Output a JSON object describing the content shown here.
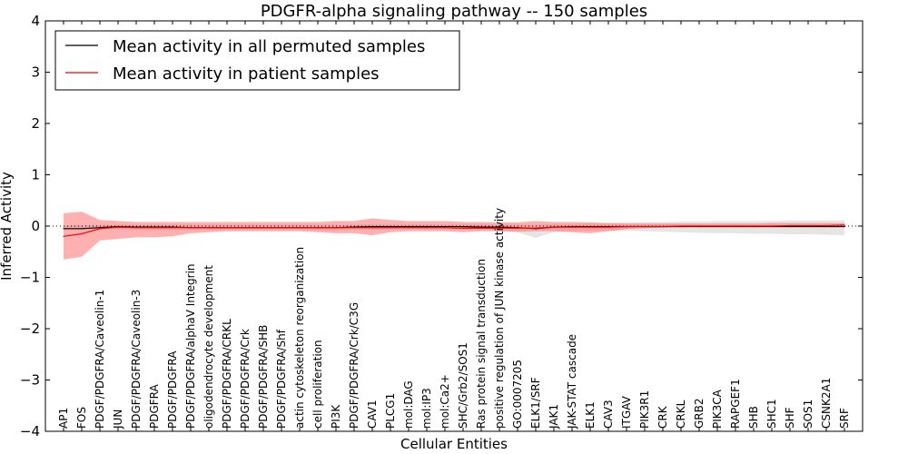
{
  "chart_data": {
    "type": "line",
    "title": "PDGFR-alpha signaling pathway -- 150 samples",
    "xlabel": "Cellular Entities",
    "ylabel": "Inferred Activity",
    "ylim": [
      -4,
      4
    ],
    "yticks": [
      -4,
      -3,
      -2,
      -1,
      0,
      1,
      2,
      3,
      4
    ],
    "grid": false,
    "legend_placement": "top-left",
    "reference_line": {
      "y": 0,
      "style": "dotted"
    },
    "categories": [
      "AP1",
      "FOS",
      "PDGF/PDGFRA/Caveolin-1",
      "JUN",
      "PDGF/PDGFRA/Caveolin-3",
      "PDGFRA",
      "PDGF/PDGFRA",
      "PDGF/PDGFRA/alphaV Integrin",
      "oligodendrocyte development",
      "PDGF/PDGFRA/CRKL",
      "PDGF/PDGFRA/Crk",
      "PDGF/PDGFRA/SHB",
      "PDGF/PDGFRA/Shf",
      "actin cytoskeleton reorganization",
      "cell proliferation",
      "PI3K",
      "PDGF/PDGFRA/Crk/C3G",
      "CAV1",
      "PLCG1",
      "mol:DAG",
      "mol:IP3",
      "mol:Ca2+",
      "SHC/Grb2/SOS1",
      "Ras protein signal transduction",
      "positive regulation of JUN kinase activity",
      "GO:0007205",
      "ELK1/SRF",
      "JAK1",
      "JAK-STAT cascade",
      "ELK1",
      "CAV3",
      "ITGAV",
      "PIK3R1",
      "CRK",
      "CRKL",
      "GRB2",
      "PIK3CA",
      "RAPGEF1",
      "SHB",
      "SHC1",
      "SHF",
      "SOS1",
      "CSNK2A1",
      "SRF"
    ],
    "series": [
      {
        "name": "Mean activity in all permuted samples",
        "color": "#000000",
        "band_color": "#b4b4b4",
        "values": [
          -0.05,
          -0.05,
          -0.03,
          -0.01,
          -0.02,
          -0.02,
          -0.02,
          -0.03,
          -0.03,
          -0.03,
          -0.03,
          -0.03,
          -0.03,
          -0.03,
          -0.03,
          -0.03,
          -0.02,
          -0.01,
          -0.01,
          -0.01,
          -0.01,
          -0.01,
          -0.01,
          -0.02,
          -0.02,
          -0.03,
          -0.05,
          -0.02,
          -0.01,
          -0.01,
          -0.01,
          -0.01,
          -0.01,
          -0.01,
          -0.01,
          -0.01,
          -0.01,
          -0.01,
          -0.01,
          -0.01,
          -0.01,
          -0.01,
          -0.01,
          -0.01
        ],
        "lower": [
          -0.08,
          -0.08,
          -0.07,
          -0.06,
          -0.06,
          -0.07,
          -0.07,
          -0.07,
          -0.07,
          -0.07,
          -0.07,
          -0.07,
          -0.07,
          -0.07,
          -0.08,
          -0.08,
          -0.07,
          -0.06,
          -0.06,
          -0.06,
          -0.06,
          -0.06,
          -0.07,
          -0.08,
          -0.09,
          -0.12,
          -0.23,
          -0.12,
          -0.1,
          -0.09,
          -0.09,
          -0.09,
          -0.1,
          -0.11,
          -0.12,
          -0.13,
          -0.14,
          -0.14,
          -0.15,
          -0.15,
          -0.16,
          -0.16,
          -0.17,
          -0.18
        ],
        "upper": [
          0.02,
          0.02,
          0.02,
          0.03,
          0.03,
          0.03,
          0.03,
          0.03,
          0.03,
          0.03,
          0.03,
          0.03,
          0.03,
          0.03,
          0.03,
          0.03,
          0.03,
          0.04,
          0.04,
          0.04,
          0.04,
          0.04,
          0.04,
          0.04,
          0.03,
          0.03,
          0.03,
          0.04,
          0.04,
          0.05,
          0.06,
          0.07,
          0.08,
          0.08,
          0.09,
          0.09,
          0.1,
          0.1,
          0.1,
          0.1,
          0.11,
          0.11,
          0.11,
          0.11
        ]
      },
      {
        "name": "Mean activity in patient samples",
        "color": "#ff0000",
        "band_color": "#ff6464",
        "values": [
          -0.2,
          -0.15,
          -0.05,
          -0.02,
          -0.03,
          -0.03,
          -0.03,
          -0.03,
          -0.03,
          -0.03,
          -0.03,
          -0.03,
          -0.03,
          -0.03,
          -0.03,
          -0.03,
          -0.03,
          -0.03,
          -0.03,
          -0.03,
          -0.03,
          -0.03,
          -0.04,
          -0.04,
          -0.04,
          -0.04,
          -0.04,
          -0.02,
          -0.02,
          -0.02,
          -0.02,
          -0.01,
          -0.01,
          -0.01,
          0.0,
          0.0,
          0.0,
          0.0,
          0.0,
          0.0,
          0.01,
          0.01,
          0.01,
          0.02
        ],
        "lower": [
          -0.65,
          -0.6,
          -0.28,
          -0.25,
          -0.22,
          -0.22,
          -0.2,
          -0.14,
          -0.12,
          -0.1,
          -0.1,
          -0.1,
          -0.1,
          -0.1,
          -0.12,
          -0.14,
          -0.14,
          -0.18,
          -0.12,
          -0.1,
          -0.1,
          -0.1,
          -0.12,
          -0.1,
          -0.1,
          -0.11,
          -0.1,
          -0.1,
          -0.12,
          -0.14,
          -0.1,
          -0.06,
          -0.04,
          -0.03,
          -0.02,
          -0.02,
          -0.02,
          -0.02,
          -0.02,
          -0.02,
          -0.02,
          -0.02,
          -0.02,
          -0.02
        ],
        "upper": [
          0.25,
          0.28,
          0.12,
          0.1,
          0.08,
          0.08,
          0.08,
          0.08,
          0.08,
          0.08,
          0.08,
          0.08,
          0.08,
          0.08,
          0.08,
          0.1,
          0.1,
          0.15,
          0.12,
          0.1,
          0.1,
          0.1,
          0.08,
          0.08,
          0.07,
          0.07,
          0.1,
          0.08,
          0.08,
          0.07,
          0.06,
          0.05,
          0.05,
          0.05,
          0.05,
          0.05,
          0.05,
          0.05,
          0.05,
          0.06,
          0.06,
          0.06,
          0.06,
          0.06
        ]
      }
    ]
  }
}
